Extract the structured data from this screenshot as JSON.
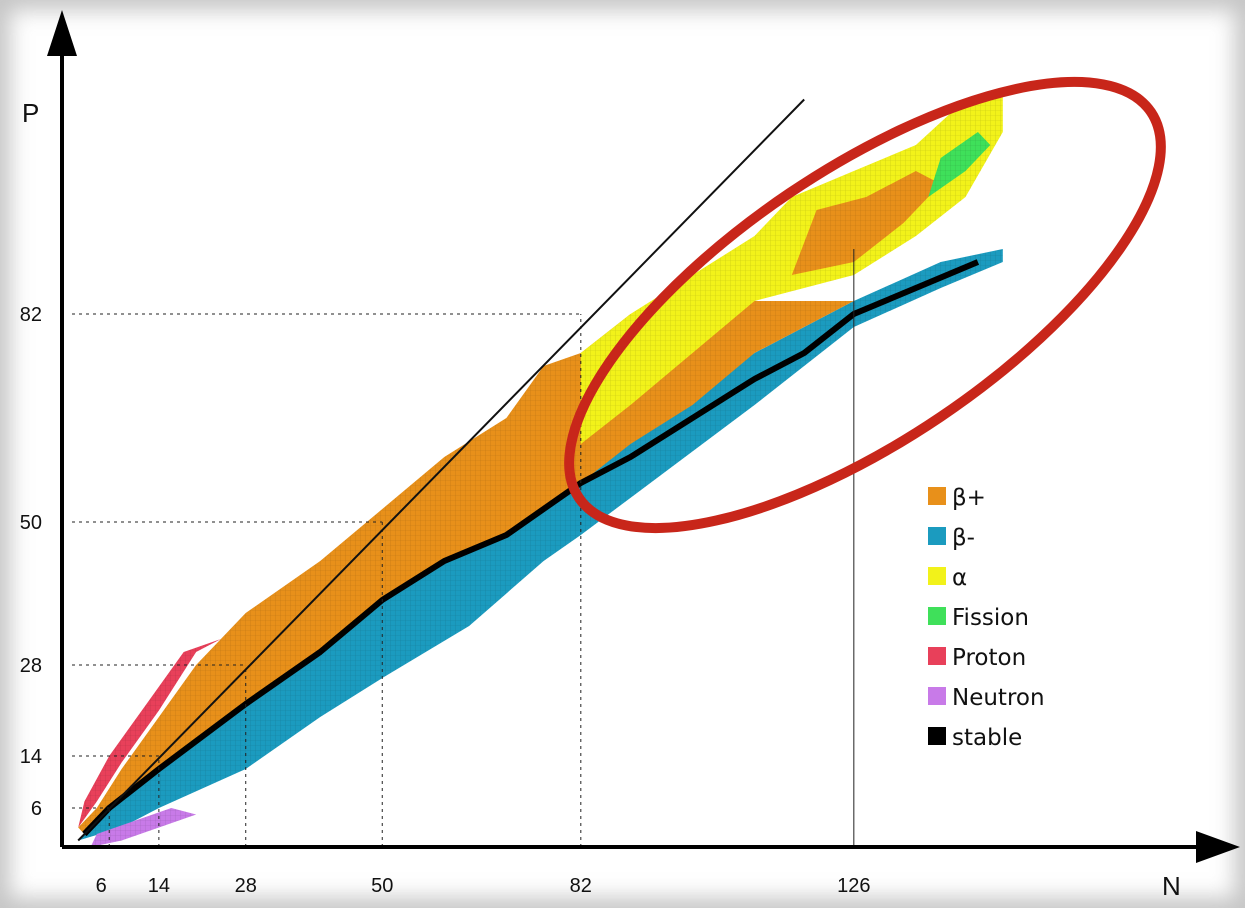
{
  "chart_data": {
    "type": "heatmap",
    "title": "",
    "xlabel": "N",
    "ylabel": "P",
    "xlim": [
      0,
      150
    ],
    "ylim": [
      0,
      118
    ],
    "x_ticks": [
      "6",
      "14",
      "28",
      "50",
      "82",
      "126"
    ],
    "y_ticks": [
      "6",
      "14",
      "28",
      "50",
      "82"
    ],
    "magic_numbers": [
      6,
      14,
      28,
      50,
      82,
      126
    ],
    "reference_line": "N = P",
    "highlight": "ellipse around heavy nuclei region",
    "legend_position": "right",
    "legend": [
      {
        "label": "β+",
        "color": "#e8901a"
      },
      {
        "label": "β-",
        "color": "#1b9bbf"
      },
      {
        "label": "α",
        "color": "#f2f21a"
      },
      {
        "label": "Fission",
        "color": "#3fe05a"
      },
      {
        "label": "Proton",
        "color": "#e8405a"
      },
      {
        "label": "Neutron",
        "color": "#c87ae8"
      },
      {
        "label": "stable",
        "color": "#000000"
      }
    ],
    "stability_line": [
      [
        2,
        2
      ],
      [
        6,
        6
      ],
      [
        14,
        12
      ],
      [
        28,
        22
      ],
      [
        40,
        30
      ],
      [
        50,
        38
      ],
      [
        60,
        44
      ],
      [
        70,
        48
      ],
      [
        82,
        56
      ],
      [
        90,
        60
      ],
      [
        100,
        66
      ],
      [
        110,
        72
      ],
      [
        118,
        76
      ],
      [
        126,
        82
      ],
      [
        136,
        86
      ],
      [
        146,
        90
      ]
    ],
    "bands": {
      "beta_minus": [
        [
          1,
          1
        ],
        [
          8,
          3
        ],
        [
          14,
          6
        ],
        [
          28,
          12
        ],
        [
          40,
          20
        ],
        [
          50,
          26
        ],
        [
          64,
          34
        ],
        [
          76,
          44
        ],
        [
          82,
          48
        ],
        [
          96,
          58
        ],
        [
          110,
          68
        ],
        [
          126,
          80
        ],
        [
          140,
          86
        ],
        [
          150,
          90
        ],
        [
          150,
          92
        ],
        [
          140,
          90
        ],
        [
          126,
          84
        ],
        [
          110,
          76
        ],
        [
          100,
          70
        ],
        [
          90,
          64
        ],
        [
          82,
          58
        ],
        [
          70,
          50
        ],
        [
          60,
          44
        ],
        [
          50,
          38
        ],
        [
          40,
          30
        ],
        [
          28,
          22
        ],
        [
          14,
          12
        ],
        [
          6,
          6
        ],
        [
          2,
          2
        ]
      ],
      "beta_plus": [
        [
          2,
          2
        ],
        [
          6,
          6
        ],
        [
          14,
          12
        ],
        [
          28,
          22
        ],
        [
          40,
          30
        ],
        [
          50,
          38
        ],
        [
          60,
          44
        ],
        [
          70,
          48
        ],
        [
          82,
          56
        ],
        [
          90,
          62
        ],
        [
          100,
          68
        ],
        [
          110,
          76
        ],
        [
          126,
          84
        ],
        [
          110,
          84
        ],
        [
          100,
          84
        ],
        [
          90,
          82
        ],
        [
          82,
          76
        ],
        [
          76,
          74
        ],
        [
          70,
          66
        ],
        [
          60,
          60
        ],
        [
          50,
          52
        ],
        [
          40,
          44
        ],
        [
          28,
          36
        ],
        [
          20,
          28
        ],
        [
          14,
          20
        ],
        [
          8,
          12
        ],
        [
          4,
          6
        ],
        [
          1,
          3
        ]
      ],
      "alpha": [
        [
          82,
          62
        ],
        [
          90,
          68
        ],
        [
          100,
          76
        ],
        [
          110,
          84
        ],
        [
          126,
          88
        ],
        [
          136,
          94
        ],
        [
          144,
          100
        ],
        [
          150,
          110
        ],
        [
          150,
          116
        ],
        [
          144,
          115
        ],
        [
          136,
          108
        ],
        [
          126,
          104
        ],
        [
          116,
          100
        ],
        [
          110,
          94
        ],
        [
          100,
          88
        ],
        [
          90,
          82
        ],
        [
          82,
          76
        ]
      ],
      "alpha_orange_core": [
        [
          116,
          88
        ],
        [
          126,
          90
        ],
        [
          134,
          96
        ],
        [
          140,
          102
        ],
        [
          136,
          104
        ],
        [
          128,
          100
        ],
        [
          120,
          98
        ]
      ],
      "fission": [
        [
          138,
          100
        ],
        [
          144,
          104
        ],
        [
          148,
          108
        ],
        [
          146,
          110
        ],
        [
          140,
          106
        ]
      ],
      "proton": [
        [
          1,
          3
        ],
        [
          4,
          7
        ],
        [
          8,
          13
        ],
        [
          14,
          21
        ],
        [
          20,
          30
        ],
        [
          24,
          32
        ],
        [
          18,
          30
        ],
        [
          12,
          22
        ],
        [
          6,
          14
        ],
        [
          2,
          7
        ]
      ],
      "neutron": [
        [
          3,
          0
        ],
        [
          8,
          1
        ],
        [
          14,
          3
        ],
        [
          20,
          5
        ],
        [
          16,
          6
        ],
        [
          10,
          4
        ],
        [
          4,
          2
        ]
      ]
    }
  }
}
